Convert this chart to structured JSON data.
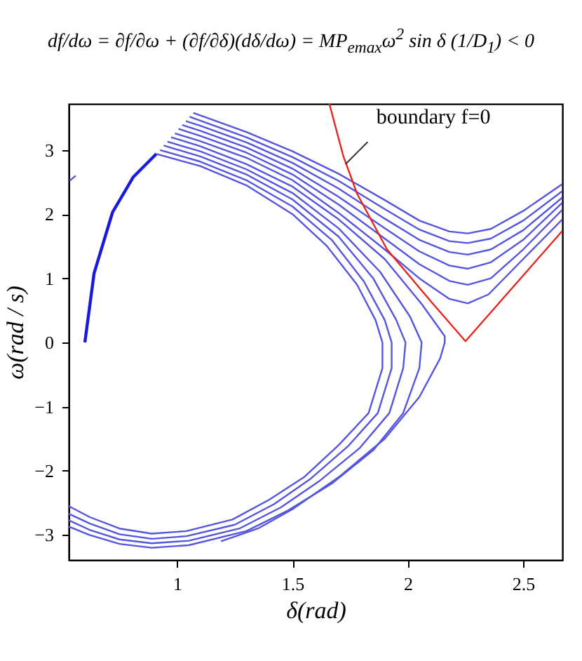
{
  "chart_data": {
    "type": "line",
    "title": "df/dω = ∂f/∂ω + (∂f/∂δ)(dδ/dω) = MP$_{emax}$ω$^{2}$ sin δ (1/D$_{1}$) < 0",
    "xlabel": "δ(rad)",
    "ylabel": "ω(rad / s)",
    "xlim": [
      0.53,
      2.67
    ],
    "ylim": [
      -3.39,
      3.72
    ],
    "xticks": [
      1,
      1.5,
      2,
      2.5
    ],
    "yticks": [
      -3,
      -2,
      -1,
      0,
      1,
      2,
      3
    ],
    "grid": false,
    "annotations": [
      {
        "text": "boundary f=0",
        "x": 1.73,
        "y": 2.78
      }
    ],
    "series": [
      {
        "color": "#1a1adc",
        "x": [
          0.6,
          0.64,
          0.72,
          0.81,
          0.91
        ],
        "values": [
          0,
          1.08,
          2.03,
          2.58,
          2.94
        ]
      },
      {
        "color": "#5555dd",
        "x": [
          0.534,
          0.56
        ],
        "values": [
          2.52,
          2.6
        ]
      },
      {
        "color": "#5555dd",
        "x": [
          0.91,
          1.1,
          1.3,
          1.5,
          1.65,
          1.78,
          1.86,
          1.89,
          1.89,
          1.83,
          1.7,
          1.55,
          1.4,
          1.24,
          1.04,
          0.89,
          0.75,
          0.62,
          0.53
        ],
        "values": [
          2.94,
          2.75,
          2.45,
          2.0,
          1.5,
          0.9,
          0.35,
          0,
          -0.4,
          -1.1,
          -1.6,
          -2.1,
          -2.45,
          -2.76,
          -2.94,
          -2.98,
          -2.9,
          -2.72,
          -2.55
        ]
      },
      {
        "color": "#5555dd",
        "x": [
          0.926,
          1.1,
          1.3,
          1.5,
          1.67,
          1.81,
          1.9,
          1.93,
          1.93,
          1.87,
          1.74,
          1.58,
          1.42,
          1.25,
          1.04,
          0.89,
          0.75,
          0.62,
          0.53
        ],
        "values": [
          3.0,
          2.82,
          2.53,
          2.12,
          1.6,
          0.95,
          0.35,
          0,
          -0.4,
          -1.1,
          -1.62,
          -2.12,
          -2.52,
          -2.84,
          -3.02,
          -3.06,
          -2.99,
          -2.82,
          -2.67
        ]
      },
      {
        "color": "#5555dd",
        "x": [
          0.942,
          1.1,
          1.3,
          1.5,
          1.7,
          1.85,
          1.95,
          1.99,
          1.98,
          1.92,
          1.79,
          1.62,
          1.45,
          1.27,
          1.05,
          0.89,
          0.75,
          0.62,
          0.53
        ],
        "values": [
          3.07,
          2.9,
          2.62,
          2.23,
          1.65,
          1.0,
          0.35,
          0,
          -0.4,
          -1.1,
          -1.65,
          -2.15,
          -2.57,
          -2.9,
          -3.09,
          -3.13,
          -3.07,
          -2.92,
          -2.77
        ]
      },
      {
        "color": "#5555dd",
        "x": [
          0.958,
          1.1,
          1.3,
          1.5,
          1.7,
          1.88,
          2.01,
          2.06,
          2.05,
          1.98,
          1.85,
          1.67,
          1.48,
          1.3,
          1.05,
          0.89,
          0.75,
          0.62,
          0.53
        ],
        "values": [
          3.13,
          2.98,
          2.7,
          2.33,
          1.78,
          1.1,
          0.4,
          0,
          -0.4,
          -1.1,
          -1.68,
          -2.2,
          -2.62,
          -2.94,
          -3.16,
          -3.2,
          -3.14,
          -3.0,
          -2.87
        ]
      },
      {
        "color": "#5555dd",
        "x": [
          0.974,
          1.1,
          1.3,
          1.5,
          1.7,
          1.9,
          2.06,
          2.16,
          2.16,
          2.14,
          2.05,
          1.9,
          1.7,
          1.5,
          1.35,
          1.19
        ],
        "values": [
          3.2,
          3.06,
          2.78,
          2.43,
          1.92,
          1.3,
          0.6,
          0.1,
          0,
          -0.25,
          -0.85,
          -1.5,
          -2.1,
          -2.6,
          -2.9,
          -3.1
        ]
      },
      {
        "color": "#5555dd",
        "x": [
          0.99,
          1.1,
          1.3,
          1.5,
          1.7,
          1.9,
          2.05,
          2.18,
          2.26,
          2.35,
          2.5,
          2.67
        ],
        "values": [
          3.26,
          3.14,
          2.88,
          2.53,
          2.02,
          1.45,
          1.0,
          0.68,
          0.61,
          0.75,
          1.3,
          1.92
        ]
      },
      {
        "color": "#5555dd",
        "x": [
          1.006,
          1.1,
          1.3,
          1.5,
          1.7,
          1.9,
          2.05,
          2.18,
          2.26,
          2.36,
          2.5,
          2.67
        ],
        "values": [
          3.33,
          3.22,
          2.96,
          2.62,
          2.15,
          1.62,
          1.22,
          0.96,
          0.9,
          1.0,
          1.45,
          2.07
        ]
      },
      {
        "color": "#5555dd",
        "x": [
          1.022,
          1.1,
          1.3,
          1.5,
          1.7,
          1.9,
          2.05,
          2.18,
          2.26,
          2.36,
          2.5,
          2.67
        ],
        "values": [
          3.39,
          3.3,
          3.04,
          2.71,
          2.27,
          1.78,
          1.42,
          1.2,
          1.15,
          1.25,
          1.6,
          2.18
        ]
      },
      {
        "color": "#5555dd",
        "x": [
          1.038,
          1.1,
          1.3,
          1.5,
          1.7,
          1.9,
          2.05,
          2.18,
          2.26,
          2.36,
          2.5,
          2.67
        ],
        "values": [
          3.45,
          3.38,
          3.12,
          2.8,
          2.4,
          1.93,
          1.6,
          1.41,
          1.37,
          1.45,
          1.75,
          2.26
        ]
      },
      {
        "color": "#5555dd",
        "x": [
          1.054,
          1.1,
          1.3,
          1.5,
          1.7,
          1.9,
          2.05,
          2.18,
          2.26,
          2.36,
          2.5,
          2.67
        ],
        "values": [
          3.52,
          3.46,
          3.2,
          2.89,
          2.52,
          2.08,
          1.76,
          1.58,
          1.55,
          1.62,
          1.9,
          2.36
        ]
      },
      {
        "color": "#5555dd",
        "x": [
          1.07,
          1.1,
          1.3,
          1.5,
          1.7,
          1.9,
          2.05,
          2.18,
          2.26,
          2.36,
          2.5,
          2.67
        ],
        "values": [
          3.58,
          3.54,
          3.28,
          2.98,
          2.63,
          2.22,
          1.9,
          1.73,
          1.7,
          1.77,
          2.05,
          2.47
        ]
      },
      {
        "color": "#e8231c",
        "x": [
          1.66,
          1.72,
          1.78,
          1.91,
          2.1,
          2.25,
          2.67
        ],
        "values": [
          3.72,
          2.91,
          2.32,
          1.45,
          0.64,
          0.02,
          1.74
        ]
      }
    ]
  }
}
